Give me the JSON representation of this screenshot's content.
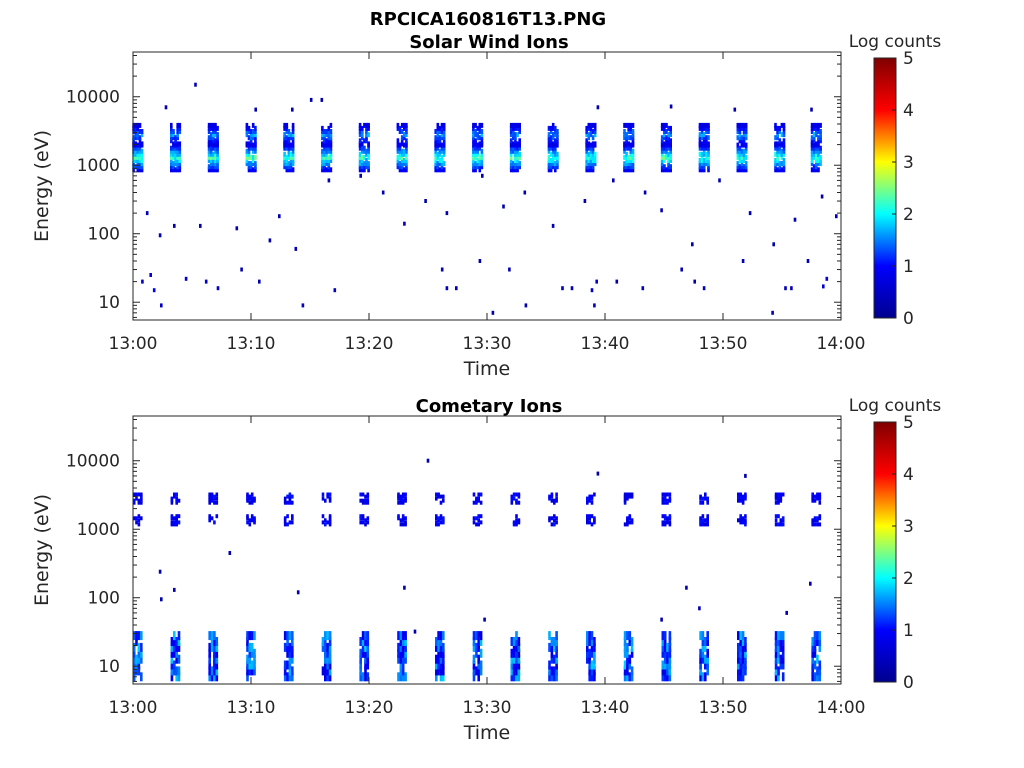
{
  "figure": {
    "title": "RPCICA160816T13.PNG"
  },
  "colormap": {
    "name": "jet",
    "stops": [
      "#00008f",
      "#0000ff",
      "#00ffff",
      "#ffff00",
      "#ff0000",
      "#800000"
    ]
  },
  "chart_data": [
    {
      "type": "heatmap",
      "title": "Solar Wind Ions",
      "xlabel": "Time",
      "ylabel": "Energy (eV)",
      "x_ticks": [
        "13:00",
        "13:10",
        "13:20",
        "13:30",
        "13:40",
        "13:50",
        "14:00"
      ],
      "xlim_minutes": [
        0,
        60
      ],
      "y_scale": "log",
      "ylim": [
        5.5,
        45000
      ],
      "y_ticks": [
        {
          "value": 10,
          "label": "10"
        },
        {
          "value": 100,
          "label": "100"
        },
        {
          "value": 1000,
          "label": "1000"
        },
        {
          "value": 10000,
          "label": "10000"
        }
      ],
      "colorbar": {
        "label": "Log counts",
        "range": [
          0,
          5
        ],
        "ticks": [
          "0",
          "1",
          "2",
          "3",
          "4",
          "5"
        ]
      },
      "pattern": {
        "scan_times_min": [
          0.4,
          3.6,
          6.8,
          10.0,
          13.2,
          16.4,
          19.6,
          22.8,
          26.0,
          29.2,
          32.4,
          35.6,
          38.8,
          42.0,
          45.2,
          48.4,
          51.6,
          54.8,
          57.9
        ],
        "peak_energy_eV": 1300,
        "peak_log_counts": 2.5,
        "secondary_energy_eV": 2800,
        "secondary_log_counts": 1.8
      },
      "sparse_points": [
        {
          "t": 5.3,
          "e": 15000,
          "c": 0.3
        },
        {
          "t": 2.8,
          "e": 7000,
          "c": 0.3
        },
        {
          "t": 15.1,
          "e": 9000,
          "c": 0.3
        },
        {
          "t": 16.0,
          "e": 9000,
          "c": 0.3
        },
        {
          "t": 10.4,
          "e": 6500,
          "c": 0.3
        },
        {
          "t": 13.5,
          "e": 6500,
          "c": 0.3
        },
        {
          "t": 39.4,
          "e": 7000,
          "c": 0.3
        },
        {
          "t": 45.6,
          "e": 7200,
          "c": 0.3
        },
        {
          "t": 51.0,
          "e": 6500,
          "c": 0.3
        },
        {
          "t": 57.5,
          "e": 6500,
          "c": 0.3
        },
        {
          "t": 1.2,
          "e": 200,
          "c": 0.4
        },
        {
          "t": 2.3,
          "e": 95,
          "c": 0.3
        },
        {
          "t": 3.5,
          "e": 130,
          "c": 0.3
        },
        {
          "t": 5.7,
          "e": 130,
          "c": 0.3
        },
        {
          "t": 8.8,
          "e": 120,
          "c": 0.3
        },
        {
          "t": 11.6,
          "e": 80,
          "c": 0.3
        },
        {
          "t": 12.4,
          "e": 180,
          "c": 0.3
        },
        {
          "t": 13.8,
          "e": 60,
          "c": 0.3
        },
        {
          "t": 16.6,
          "e": 600,
          "c": 0.3
        },
        {
          "t": 19.3,
          "e": 700,
          "c": 0.3
        },
        {
          "t": 21.2,
          "e": 400,
          "c": 0.3
        },
        {
          "t": 23.0,
          "e": 140,
          "c": 0.3
        },
        {
          "t": 24.8,
          "e": 300,
          "c": 0.3
        },
        {
          "t": 26.6,
          "e": 200,
          "c": 0.3
        },
        {
          "t": 29.6,
          "e": 700,
          "c": 0.3
        },
        {
          "t": 31.4,
          "e": 250,
          "c": 0.3
        },
        {
          "t": 33.2,
          "e": 400,
          "c": 0.3
        },
        {
          "t": 35.6,
          "e": 130,
          "c": 0.3
        },
        {
          "t": 38.3,
          "e": 300,
          "c": 0.3
        },
        {
          "t": 40.7,
          "e": 600,
          "c": 0.3
        },
        {
          "t": 43.4,
          "e": 400,
          "c": 0.3
        },
        {
          "t": 44.8,
          "e": 220,
          "c": 0.3
        },
        {
          "t": 47.4,
          "e": 70,
          "c": 0.3
        },
        {
          "t": 49.7,
          "e": 600,
          "c": 0.3
        },
        {
          "t": 52.3,
          "e": 200,
          "c": 0.3
        },
        {
          "t": 54.3,
          "e": 70,
          "c": 0.3
        },
        {
          "t": 56.1,
          "e": 160,
          "c": 0.3
        },
        {
          "t": 58.4,
          "e": 350,
          "c": 0.3
        },
        {
          "t": 59.6,
          "e": 180,
          "c": 0.3
        },
        {
          "t": 0.8,
          "e": 20,
          "c": 0.6
        },
        {
          "t": 1.5,
          "e": 25,
          "c": 0.7
        },
        {
          "t": 1.8,
          "e": 15,
          "c": 0.8
        },
        {
          "t": 2.4,
          "e": 9,
          "c": 0.5
        },
        {
          "t": 4.5,
          "e": 22,
          "c": 0.5
        },
        {
          "t": 6.2,
          "e": 20,
          "c": 0.5
        },
        {
          "t": 7.2,
          "e": 16,
          "c": 0.5
        },
        {
          "t": 9.2,
          "e": 30,
          "c": 0.3
        },
        {
          "t": 10.7,
          "e": 20,
          "c": 0.3
        },
        {
          "t": 14.4,
          "e": 9,
          "c": 0.5
        },
        {
          "t": 17.1,
          "e": 15,
          "c": 0.5
        },
        {
          "t": 26.2,
          "e": 30,
          "c": 0.3
        },
        {
          "t": 26.6,
          "e": 16,
          "c": 0.4
        },
        {
          "t": 27.4,
          "e": 16,
          "c": 0.4
        },
        {
          "t": 29.4,
          "e": 40,
          "c": 0.3
        },
        {
          "t": 30.5,
          "e": 7,
          "c": 0.3
        },
        {
          "t": 31.9,
          "e": 30,
          "c": 0.3
        },
        {
          "t": 33.3,
          "e": 9,
          "c": 0.3
        },
        {
          "t": 36.4,
          "e": 16,
          "c": 0.4
        },
        {
          "t": 37.2,
          "e": 16,
          "c": 0.4
        },
        {
          "t": 38.9,
          "e": 15,
          "c": 0.5
        },
        {
          "t": 39.3,
          "e": 20,
          "c": 0.6
        },
        {
          "t": 39.1,
          "e": 9,
          "c": 0.5
        },
        {
          "t": 41.0,
          "e": 20,
          "c": 0.3
        },
        {
          "t": 43.2,
          "e": 16,
          "c": 0.4
        },
        {
          "t": 46.5,
          "e": 30,
          "c": 0.3
        },
        {
          "t": 47.6,
          "e": 20,
          "c": 0.3
        },
        {
          "t": 48.4,
          "e": 16,
          "c": 0.4
        },
        {
          "t": 51.7,
          "e": 40,
          "c": 0.3
        },
        {
          "t": 54.2,
          "e": 7,
          "c": 0.3
        },
        {
          "t": 55.3,
          "e": 16,
          "c": 0.4
        },
        {
          "t": 55.8,
          "e": 16,
          "c": 0.4
        },
        {
          "t": 58.5,
          "e": 17,
          "c": 0.6
        },
        {
          "t": 58.8,
          "e": 22,
          "c": 0.7
        },
        {
          "t": 57.2,
          "e": 40,
          "c": 0.3
        }
      ]
    },
    {
      "type": "heatmap",
      "title": "Cometary Ions",
      "xlabel": "Time",
      "ylabel": "Energy (eV)",
      "x_ticks": [
        "13:00",
        "13:10",
        "13:20",
        "13:30",
        "13:40",
        "13:50",
        "14:00"
      ],
      "xlim_minutes": [
        0,
        60
      ],
      "y_scale": "log",
      "ylim": [
        5.5,
        45000
      ],
      "y_ticks": [
        {
          "value": 10,
          "label": "10"
        },
        {
          "value": 100,
          "label": "100"
        },
        {
          "value": 1000,
          "label": "1000"
        },
        {
          "value": 10000,
          "label": "10000"
        }
      ],
      "colorbar": {
        "label": "Log counts",
        "range": [
          0,
          5
        ],
        "ticks": [
          "0",
          "1",
          "2",
          "3",
          "4",
          "5"
        ]
      },
      "pattern": {
        "scan_times_min": [
          0.4,
          3.6,
          6.8,
          10.0,
          13.2,
          16.4,
          19.6,
          22.8,
          26.0,
          29.2,
          32.4,
          35.6,
          38.8,
          42.0,
          45.2,
          48.4,
          51.6,
          54.8,
          57.9
        ],
        "high_energies_eV": [
          1350,
          2800
        ],
        "high_log_counts": 0.9,
        "low_energy_range_eV": [
          7,
          28
        ],
        "low_log_counts": 1.4
      },
      "sparse_points": [
        {
          "t": 25.0,
          "e": 10000,
          "c": 0.3
        },
        {
          "t": 39.4,
          "e": 6500,
          "c": 0.3
        },
        {
          "t": 51.9,
          "e": 6000,
          "c": 0.3
        },
        {
          "t": 8.2,
          "e": 450,
          "c": 0.3
        },
        {
          "t": 2.3,
          "e": 240,
          "c": 0.3
        },
        {
          "t": 2.4,
          "e": 95,
          "c": 0.3
        },
        {
          "t": 3.5,
          "e": 130,
          "c": 0.3
        },
        {
          "t": 14.0,
          "e": 120,
          "c": 0.3
        },
        {
          "t": 23.0,
          "e": 140,
          "c": 0.3
        },
        {
          "t": 29.8,
          "e": 48,
          "c": 0.3
        },
        {
          "t": 44.8,
          "e": 48,
          "c": 0.3
        },
        {
          "t": 46.9,
          "e": 140,
          "c": 0.3
        },
        {
          "t": 48.0,
          "e": 70,
          "c": 0.3
        },
        {
          "t": 55.4,
          "e": 60,
          "c": 0.3
        },
        {
          "t": 57.4,
          "e": 160,
          "c": 0.3
        },
        {
          "t": 23.9,
          "e": 32,
          "c": 0.3
        }
      ]
    }
  ]
}
